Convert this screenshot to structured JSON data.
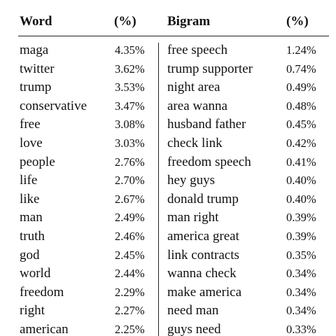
{
  "headers": {
    "word": "Word",
    "word_pct": "(%)",
    "bigram": "Bigram",
    "bigram_pct": "(%)"
  },
  "rows": [
    {
      "word": "maga",
      "word_pct": "4.35%",
      "bigram": "free speech",
      "bigram_pct": "1.24%"
    },
    {
      "word": "twitter",
      "word_pct": "3.62%",
      "bigram": "trump supporter",
      "bigram_pct": "0.74%"
    },
    {
      "word": "trump",
      "word_pct": "3.53%",
      "bigram": "night area",
      "bigram_pct": "0.49%"
    },
    {
      "word": "conservative",
      "word_pct": "3.47%",
      "bigram": "area wanna",
      "bigram_pct": "0.48%"
    },
    {
      "word": "free",
      "word_pct": "3.08%",
      "bigram": "husband father",
      "bigram_pct": "0.45%"
    },
    {
      "word": "love",
      "word_pct": "3.03%",
      "bigram": "check link",
      "bigram_pct": "0.42%"
    },
    {
      "word": "people",
      "word_pct": "2.76%",
      "bigram": "freedom speech",
      "bigram_pct": "0.41%"
    },
    {
      "word": "life",
      "word_pct": "2.70%",
      "bigram": "hey guys",
      "bigram_pct": "0.40%"
    },
    {
      "word": "like",
      "word_pct": "2.67%",
      "bigram": "donald trump",
      "bigram_pct": "0.40%"
    },
    {
      "word": "man",
      "word_pct": "2.49%",
      "bigram": "man right",
      "bigram_pct": "0.39%"
    },
    {
      "word": "truth",
      "word_pct": "2.46%",
      "bigram": "america great",
      "bigram_pct": "0.39%"
    },
    {
      "word": "god",
      "word_pct": "2.45%",
      "bigram": "link contracts",
      "bigram_pct": "0.35%"
    },
    {
      "word": "world",
      "word_pct": "2.44%",
      "bigram": "wanna check",
      "bigram_pct": "0.34%"
    },
    {
      "word": "freedom",
      "word_pct": "2.29%",
      "bigram": "make america",
      "bigram_pct": "0.34%"
    },
    {
      "word": "right",
      "word_pct": "2.27%",
      "bigram": "need man",
      "bigram_pct": "0.34%"
    },
    {
      "word": "american",
      "word_pct": "2.25%",
      "bigram": "guys need",
      "bigram_pct": "0.33%"
    }
  ]
}
